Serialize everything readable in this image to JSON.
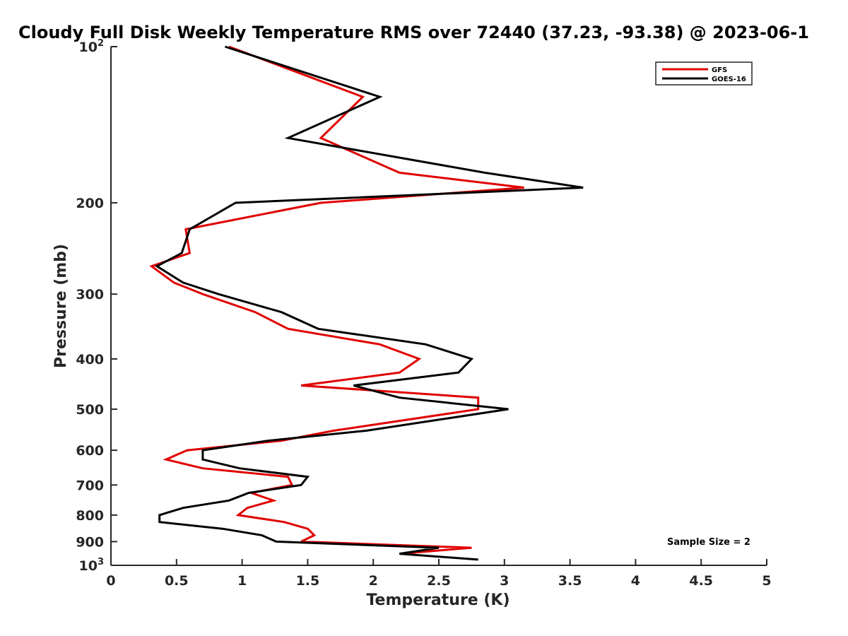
{
  "chart_data": {
    "type": "line",
    "title": "Cloudy Full Disk Weekly Temperature RMS over 72440 (37.23, -93.38) @ 2023-06-1",
    "xlabel": "Temperature (K)",
    "ylabel": "Pressure (mb)",
    "xlim": [
      0,
      5
    ],
    "ylim": [
      100,
      1000
    ],
    "yscale": "log",
    "y_reversed": true,
    "xticks": [
      "0",
      "0.5",
      "1",
      "1.5",
      "2",
      "2.5",
      "3",
      "3.5",
      "4",
      "4.5",
      "5"
    ],
    "yticks": [
      {
        "value": 100,
        "base": "10",
        "exp": "2"
      },
      {
        "value": 200,
        "label": "200"
      },
      {
        "value": 300,
        "label": "300"
      },
      {
        "value": 400,
        "label": "400"
      },
      {
        "value": 500,
        "label": "500"
      },
      {
        "value": 600,
        "label": "600"
      },
      {
        "value": 700,
        "label": "700"
      },
      {
        "value": 800,
        "label": "800"
      },
      {
        "value": 900,
        "label": "900"
      },
      {
        "value": 1000,
        "base": "10",
        "exp": "3"
      }
    ],
    "grid": false,
    "legend_position": "top-right",
    "annotation": "Sample Size = 2",
    "series": [
      {
        "name": "GFS",
        "color": "#e00000",
        "points": [
          [
            0.9,
            100
          ],
          [
            1.92,
            125
          ],
          [
            1.6,
            150
          ],
          [
            2.2,
            175
          ],
          [
            3.15,
            187
          ],
          [
            1.6,
            200
          ],
          [
            0.57,
            225
          ],
          [
            0.6,
            250
          ],
          [
            0.31,
            265
          ],
          [
            0.48,
            285
          ],
          [
            0.7,
            300
          ],
          [
            1.1,
            325
          ],
          [
            1.35,
            350
          ],
          [
            2.05,
            375
          ],
          [
            2.35,
            400
          ],
          [
            2.2,
            425
          ],
          [
            1.45,
            450
          ],
          [
            2.8,
            475
          ],
          [
            2.8,
            500
          ],
          [
            1.7,
            550
          ],
          [
            1.3,
            575
          ],
          [
            0.58,
            600
          ],
          [
            0.42,
            625
          ],
          [
            0.7,
            650
          ],
          [
            1.35,
            675
          ],
          [
            1.38,
            700
          ],
          [
            1.07,
            725
          ],
          [
            1.24,
            750
          ],
          [
            1.04,
            775
          ],
          [
            0.97,
            800
          ],
          [
            1.32,
            825
          ],
          [
            1.5,
            850
          ],
          [
            1.55,
            875
          ],
          [
            1.45,
            900
          ],
          [
            2.75,
            925
          ],
          [
            2.2,
            950
          ]
        ]
      },
      {
        "name": "GOES-16",
        "color": "#000000",
        "points": [
          [
            0.87,
            100
          ],
          [
            2.05,
            125
          ],
          [
            1.35,
            150
          ],
          [
            2.85,
            175
          ],
          [
            3.6,
            187
          ],
          [
            0.95,
            200
          ],
          [
            0.6,
            225
          ],
          [
            0.54,
            250
          ],
          [
            0.35,
            265
          ],
          [
            0.55,
            285
          ],
          [
            0.82,
            300
          ],
          [
            1.3,
            325
          ],
          [
            1.58,
            350
          ],
          [
            2.4,
            375
          ],
          [
            2.75,
            400
          ],
          [
            2.65,
            425
          ],
          [
            1.85,
            450
          ],
          [
            2.2,
            475
          ],
          [
            3.03,
            500
          ],
          [
            1.95,
            550
          ],
          [
            1.2,
            575
          ],
          [
            0.7,
            600
          ],
          [
            0.7,
            625
          ],
          [
            0.98,
            650
          ],
          [
            1.5,
            675
          ],
          [
            1.45,
            700
          ],
          [
            1.05,
            725
          ],
          [
            0.9,
            750
          ],
          [
            0.55,
            775
          ],
          [
            0.37,
            800
          ],
          [
            0.37,
            825
          ],
          [
            0.85,
            850
          ],
          [
            1.15,
            875
          ],
          [
            1.26,
            900
          ],
          [
            2.5,
            925
          ],
          [
            2.2,
            950
          ],
          [
            2.8,
            975
          ]
        ]
      }
    ]
  }
}
